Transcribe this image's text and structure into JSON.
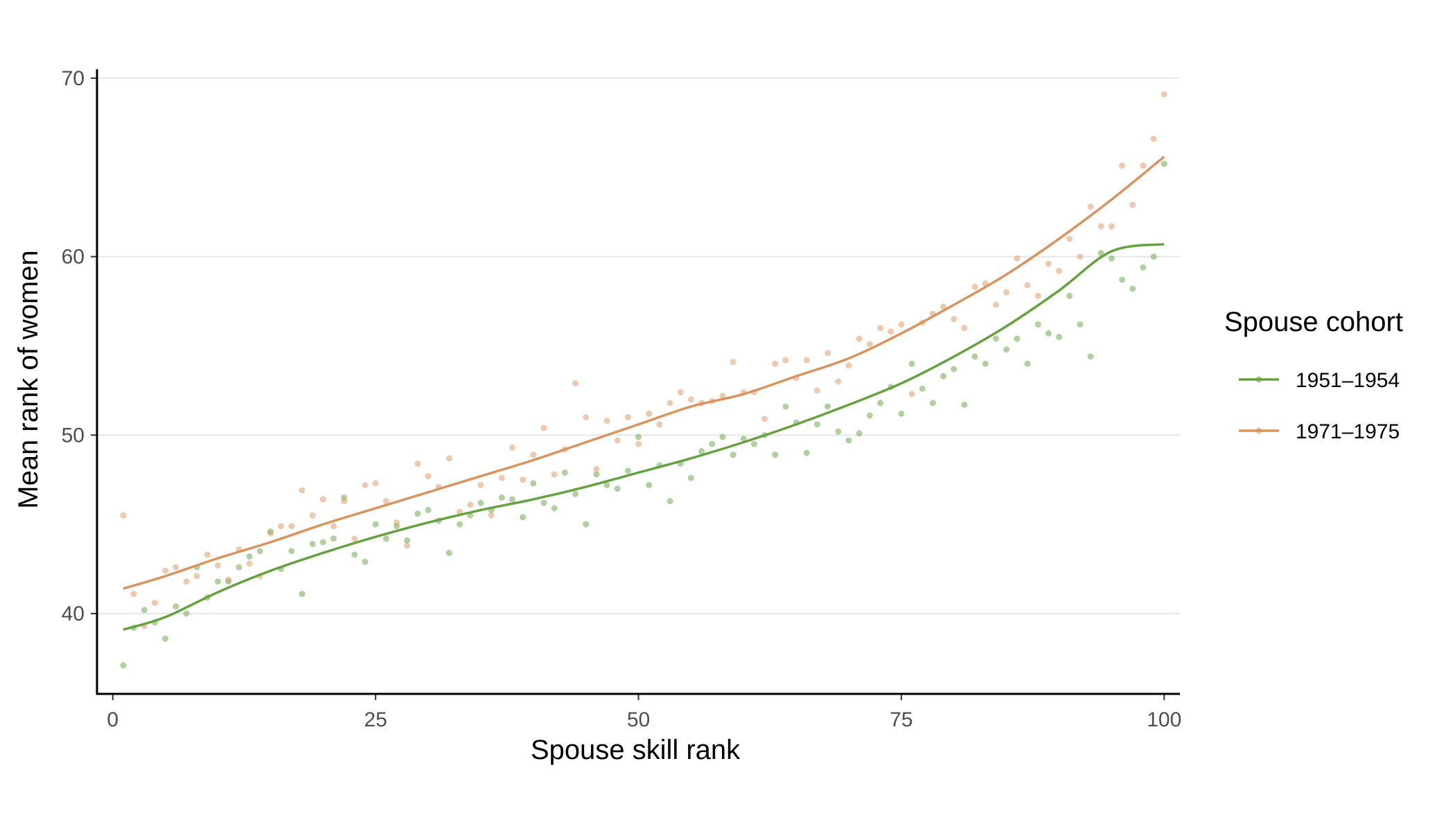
{
  "chart_data": {
    "type": "scatter",
    "xlabel": "Spouse skill rank",
    "ylabel": "Mean rank of women",
    "xlim": [
      -1.5,
      101.5
    ],
    "ylim": [
      35.5,
      70.5
    ],
    "x_ticks": [
      0,
      25,
      50,
      75,
      100
    ],
    "y_ticks": [
      40,
      50,
      60,
      70
    ],
    "grid": "horizontal major gridlines",
    "legend": {
      "title": "Spouse cohort",
      "position": "right",
      "entries": [
        "1951–1954",
        "1971–1975"
      ]
    },
    "series": [
      {
        "name": "1951–1954",
        "color": "#66a13f",
        "points": [
          [
            1,
            37.1
          ],
          [
            2,
            39.2
          ],
          [
            3,
            40.2
          ],
          [
            4,
            39.5
          ],
          [
            5,
            38.6
          ],
          [
            6,
            40.4
          ],
          [
            7,
            40.0
          ],
          [
            8,
            42.6
          ],
          [
            9,
            40.9
          ],
          [
            10,
            41.8
          ],
          [
            11,
            41.8
          ],
          [
            12,
            42.6
          ],
          [
            13,
            43.2
          ],
          [
            14,
            43.5
          ],
          [
            15,
            44.6
          ],
          [
            16,
            42.5
          ],
          [
            17,
            43.5
          ],
          [
            18,
            41.1
          ],
          [
            19,
            43.9
          ],
          [
            20,
            44.0
          ],
          [
            21,
            44.2
          ],
          [
            22,
            46.5
          ],
          [
            23,
            43.3
          ],
          [
            24,
            42.9
          ],
          [
            25,
            45.0
          ],
          [
            26,
            44.2
          ],
          [
            27,
            44.9
          ],
          [
            28,
            44.1
          ],
          [
            29,
            45.6
          ],
          [
            30,
            45.8
          ],
          [
            31,
            45.2
          ],
          [
            32,
            43.4
          ],
          [
            33,
            45.0
          ],
          [
            34,
            45.5
          ],
          [
            35,
            46.2
          ],
          [
            36,
            45.8
          ],
          [
            37,
            46.5
          ],
          [
            38,
            46.4
          ],
          [
            39,
            45.4
          ],
          [
            40,
            47.3
          ],
          [
            41,
            46.2
          ],
          [
            42,
            45.9
          ],
          [
            43,
            47.9
          ],
          [
            44,
            46.7
          ],
          [
            45,
            45.0
          ],
          [
            46,
            47.8
          ],
          [
            47,
            47.2
          ],
          [
            48,
            47.0
          ],
          [
            49,
            48.0
          ],
          [
            50,
            49.9
          ],
          [
            51,
            47.2
          ],
          [
            52,
            48.3
          ],
          [
            53,
            46.3
          ],
          [
            54,
            48.4
          ],
          [
            55,
            47.6
          ],
          [
            56,
            49.1
          ],
          [
            57,
            49.5
          ],
          [
            58,
            49.9
          ],
          [
            59,
            48.9
          ],
          [
            60,
            49.8
          ],
          [
            61,
            49.5
          ],
          [
            62,
            50.0
          ],
          [
            63,
            48.9
          ],
          [
            64,
            51.6
          ],
          [
            65,
            50.7
          ],
          [
            66,
            49.0
          ],
          [
            67,
            50.6
          ],
          [
            68,
            51.6
          ],
          [
            69,
            50.2
          ],
          [
            70,
            49.7
          ],
          [
            71,
            50.1
          ],
          [
            72,
            51.1
          ],
          [
            73,
            51.8
          ],
          [
            74,
            52.7
          ],
          [
            75,
            51.2
          ],
          [
            76,
            54.0
          ],
          [
            77,
            52.6
          ],
          [
            78,
            51.8
          ],
          [
            79,
            53.3
          ],
          [
            80,
            53.7
          ],
          [
            81,
            51.7
          ],
          [
            82,
            54.4
          ],
          [
            83,
            54.0
          ],
          [
            84,
            55.4
          ],
          [
            85,
            54.8
          ],
          [
            86,
            55.4
          ],
          [
            87,
            54.0
          ],
          [
            88,
            56.2
          ],
          [
            89,
            55.7
          ],
          [
            90,
            55.5
          ],
          [
            91,
            57.8
          ],
          [
            92,
            56.2
          ],
          [
            93,
            54.4
          ],
          [
            94,
            60.2
          ],
          [
            95,
            59.9
          ],
          [
            96,
            58.7
          ],
          [
            97,
            58.2
          ],
          [
            98,
            59.4
          ],
          [
            99,
            60.0
          ],
          [
            100,
            65.2
          ]
        ],
        "smooth": [
          [
            1,
            39.1
          ],
          [
            5,
            39.8
          ],
          [
            10,
            41.2
          ],
          [
            15,
            42.4
          ],
          [
            20,
            43.4
          ],
          [
            25,
            44.3
          ],
          [
            30,
            45.1
          ],
          [
            35,
            45.8
          ],
          [
            40,
            46.4
          ],
          [
            45,
            47.1
          ],
          [
            50,
            47.9
          ],
          [
            55,
            48.7
          ],
          [
            60,
            49.6
          ],
          [
            65,
            50.6
          ],
          [
            70,
            51.7
          ],
          [
            75,
            52.9
          ],
          [
            80,
            54.4
          ],
          [
            85,
            56.1
          ],
          [
            90,
            58.1
          ],
          [
            95,
            60.3
          ],
          [
            100,
            60.7
          ]
        ]
      },
      {
        "name": "1971–1975",
        "color": "#d9935f",
        "points": [
          [
            1,
            45.5
          ],
          [
            2,
            41.1
          ],
          [
            3,
            39.3
          ],
          [
            4,
            40.6
          ],
          [
            5,
            42.4
          ],
          [
            6,
            42.6
          ],
          [
            7,
            41.8
          ],
          [
            8,
            42.1
          ],
          [
            9,
            43.3
          ],
          [
            10,
            42.7
          ],
          [
            11,
            41.9
          ],
          [
            12,
            43.6
          ],
          [
            13,
            42.8
          ],
          [
            14,
            42.1
          ],
          [
            15,
            44.5
          ],
          [
            16,
            44.9
          ],
          [
            17,
            44.9
          ],
          [
            18,
            46.9
          ],
          [
            19,
            45.5
          ],
          [
            20,
            46.4
          ],
          [
            21,
            44.9
          ],
          [
            22,
            46.3
          ],
          [
            23,
            44.2
          ],
          [
            24,
            47.2
          ],
          [
            25,
            47.3
          ],
          [
            26,
            46.3
          ],
          [
            27,
            45.1
          ],
          [
            28,
            43.8
          ],
          [
            29,
            48.4
          ],
          [
            30,
            47.7
          ],
          [
            31,
            47.1
          ],
          [
            32,
            48.7
          ],
          [
            33,
            45.7
          ],
          [
            34,
            46.1
          ],
          [
            35,
            47.2
          ],
          [
            36,
            45.5
          ],
          [
            37,
            47.6
          ],
          [
            38,
            49.3
          ],
          [
            39,
            47.5
          ],
          [
            40,
            48.9
          ],
          [
            41,
            50.4
          ],
          [
            42,
            47.8
          ],
          [
            43,
            49.2
          ],
          [
            44,
            52.9
          ],
          [
            45,
            51.0
          ],
          [
            46,
            48.1
          ],
          [
            47,
            50.8
          ],
          [
            48,
            49.7
          ],
          [
            49,
            51.0
          ],
          [
            50,
            49.5
          ],
          [
            51,
            51.2
          ],
          [
            52,
            50.6
          ],
          [
            53,
            51.8
          ],
          [
            54,
            52.4
          ],
          [
            55,
            52.0
          ],
          [
            56,
            51.8
          ],
          [
            57,
            51.9
          ],
          [
            58,
            52.2
          ],
          [
            59,
            54.1
          ],
          [
            60,
            52.4
          ],
          [
            61,
            52.4
          ],
          [
            62,
            50.9
          ],
          [
            63,
            54.0
          ],
          [
            64,
            54.2
          ],
          [
            65,
            53.2
          ],
          [
            66,
            54.2
          ],
          [
            67,
            52.5
          ],
          [
            68,
            54.6
          ],
          [
            69,
            53.0
          ],
          [
            70,
            53.9
          ],
          [
            71,
            55.4
          ],
          [
            72,
            55.1
          ],
          [
            73,
            56.0
          ],
          [
            74,
            55.8
          ],
          [
            75,
            56.2
          ],
          [
            76,
            52.3
          ],
          [
            77,
            56.3
          ],
          [
            78,
            56.8
          ],
          [
            79,
            57.2
          ],
          [
            80,
            56.5
          ],
          [
            81,
            56.0
          ],
          [
            82,
            58.3
          ],
          [
            83,
            58.5
          ],
          [
            84,
            57.3
          ],
          [
            85,
            58.0
          ],
          [
            86,
            59.9
          ],
          [
            87,
            58.4
          ],
          [
            88,
            57.8
          ],
          [
            89,
            59.6
          ],
          [
            90,
            59.2
          ],
          [
            91,
            61.0
          ],
          [
            92,
            60.0
          ],
          [
            93,
            62.8
          ],
          [
            94,
            61.7
          ],
          [
            95,
            61.7
          ],
          [
            96,
            65.1
          ],
          [
            97,
            62.9
          ],
          [
            98,
            65.1
          ],
          [
            99,
            66.6
          ],
          [
            100,
            69.1
          ]
        ],
        "smooth": [
          [
            1,
            41.4
          ],
          [
            5,
            42.1
          ],
          [
            10,
            43.1
          ],
          [
            15,
            44.0
          ],
          [
            20,
            45.0
          ],
          [
            25,
            45.9
          ],
          [
            30,
            46.8
          ],
          [
            35,
            47.7
          ],
          [
            40,
            48.6
          ],
          [
            45,
            49.6
          ],
          [
            50,
            50.6
          ],
          [
            55,
            51.6
          ],
          [
            60,
            52.3
          ],
          [
            65,
            53.3
          ],
          [
            70,
            54.3
          ],
          [
            75,
            55.7
          ],
          [
            80,
            57.3
          ],
          [
            85,
            59.0
          ],
          [
            90,
            61.0
          ],
          [
            95,
            63.2
          ],
          [
            100,
            65.6
          ]
        ]
      }
    ]
  }
}
